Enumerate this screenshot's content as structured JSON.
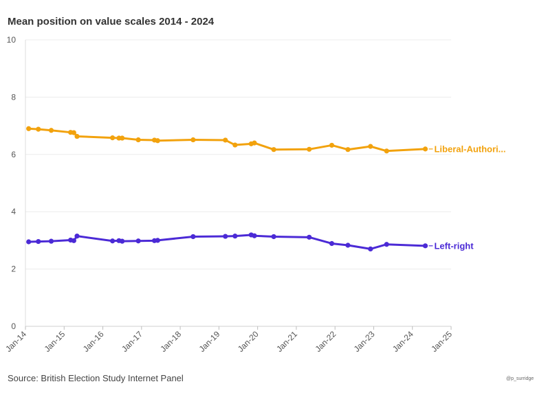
{
  "title": "Mean position on value scales 2014 - 2024",
  "source": "Source: British Election Study Internet Panel",
  "credit": "@p_surridge",
  "chart_data": {
    "type": "line",
    "title": "Mean position on value scales 2014 - 2024",
    "xlabel": "",
    "ylabel": "",
    "ylim": [
      0,
      10
    ],
    "y_ticks": [
      "0",
      "2",
      "4",
      "6",
      "8",
      "10"
    ],
    "x_ticks": [
      "Jan-14",
      "Jan-15",
      "Jan-16",
      "Jan-17",
      "Jan-18",
      "Jan-19",
      "Jan-20",
      "Jan-21",
      "Jan-22",
      "Jan-23",
      "Jan-24",
      "Jan-25"
    ],
    "x_range": [
      "2014-01",
      "2025-01"
    ],
    "grid": "horizontal",
    "series": [
      {
        "name": "Liberal-Authori...",
        "color": "#f2a20d",
        "points": [
          {
            "date": "2014-02",
            "value": 6.9
          },
          {
            "date": "2014-05",
            "value": 6.88
          },
          {
            "date": "2014-09",
            "value": 6.84
          },
          {
            "date": "2015-03",
            "value": 6.77
          },
          {
            "date": "2015-04",
            "value": 6.76
          },
          {
            "date": "2015-05",
            "value": 6.63
          },
          {
            "date": "2016-04",
            "value": 6.58
          },
          {
            "date": "2016-06",
            "value": 6.57
          },
          {
            "date": "2016-07",
            "value": 6.57
          },
          {
            "date": "2016-12",
            "value": 6.51
          },
          {
            "date": "2017-05",
            "value": 6.5
          },
          {
            "date": "2017-06",
            "value": 6.48
          },
          {
            "date": "2018-05",
            "value": 6.51
          },
          {
            "date": "2019-03",
            "value": 6.5
          },
          {
            "date": "2019-06",
            "value": 6.33
          },
          {
            "date": "2019-11",
            "value": 6.37
          },
          {
            "date": "2019-12",
            "value": 6.4
          },
          {
            "date": "2020-06",
            "value": 6.17
          },
          {
            "date": "2021-05",
            "value": 6.18
          },
          {
            "date": "2021-12",
            "value": 6.32
          },
          {
            "date": "2022-05",
            "value": 6.17
          },
          {
            "date": "2022-12",
            "value": 6.28
          },
          {
            "date": "2023-05",
            "value": 6.12
          },
          {
            "date": "2024-05",
            "value": 6.19
          }
        ]
      },
      {
        "name": "Left-right",
        "color": "#4b2ad6",
        "points": [
          {
            "date": "2014-02",
            "value": 2.95
          },
          {
            "date": "2014-05",
            "value": 2.96
          },
          {
            "date": "2014-09",
            "value": 2.97
          },
          {
            "date": "2015-03",
            "value": 3.01
          },
          {
            "date": "2015-04",
            "value": 2.99
          },
          {
            "date": "2015-05",
            "value": 3.15
          },
          {
            "date": "2016-04",
            "value": 2.98
          },
          {
            "date": "2016-06",
            "value": 2.99
          },
          {
            "date": "2016-07",
            "value": 2.97
          },
          {
            "date": "2016-12",
            "value": 2.98
          },
          {
            "date": "2017-05",
            "value": 2.99
          },
          {
            "date": "2017-06",
            "value": 3.0
          },
          {
            "date": "2018-05",
            "value": 3.13
          },
          {
            "date": "2019-03",
            "value": 3.14
          },
          {
            "date": "2019-06",
            "value": 3.15
          },
          {
            "date": "2019-11",
            "value": 3.19
          },
          {
            "date": "2019-12",
            "value": 3.16
          },
          {
            "date": "2020-06",
            "value": 3.13
          },
          {
            "date": "2021-05",
            "value": 3.11
          },
          {
            "date": "2021-12",
            "value": 2.89
          },
          {
            "date": "2022-05",
            "value": 2.83
          },
          {
            "date": "2022-12",
            "value": 2.7
          },
          {
            "date": "2023-05",
            "value": 2.86
          },
          {
            "date": "2024-05",
            "value": 2.81
          }
        ]
      }
    ]
  }
}
